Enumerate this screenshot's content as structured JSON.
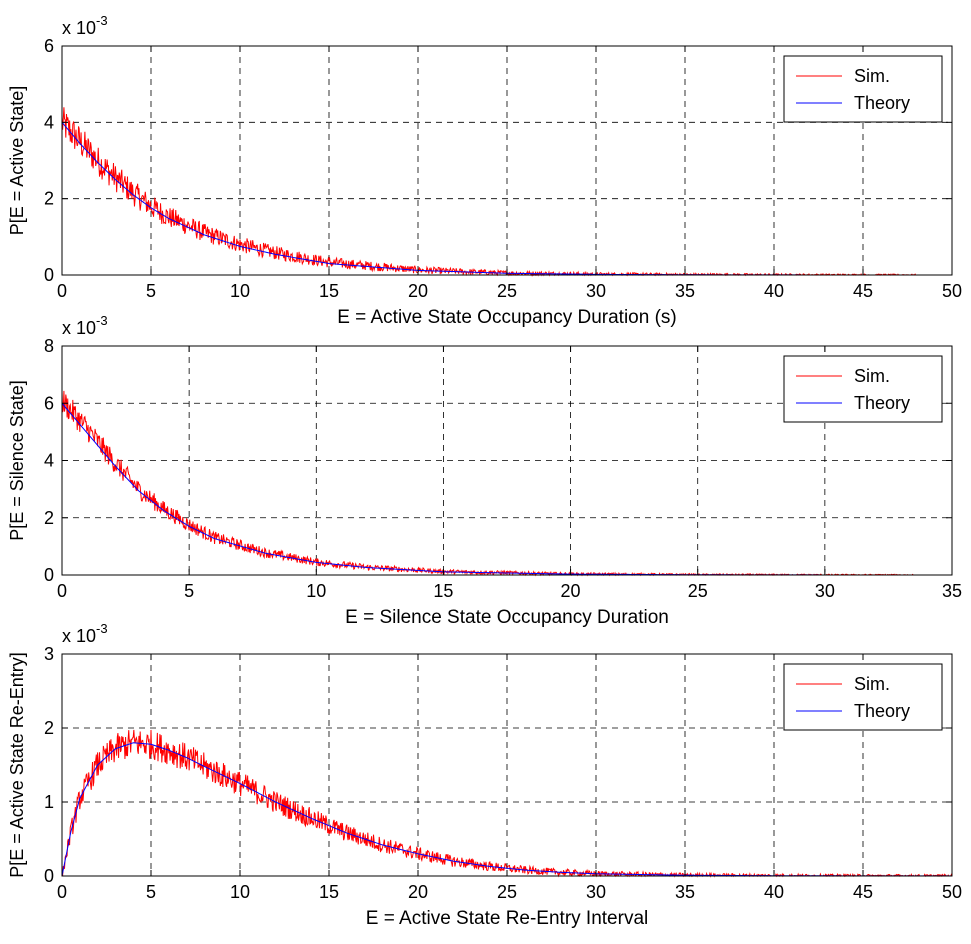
{
  "chart_data": [
    {
      "type": "line",
      "exponent_label": "x 10",
      "exponent_power": "-3",
      "xlabel": "E = Active State Occupancy Duration (s)",
      "ylabel": "P[E = Active State]",
      "xlim": [
        0,
        50
      ],
      "ylim": [
        0,
        6
      ],
      "xticks": [
        "0",
        "5",
        "10",
        "15",
        "20",
        "25",
        "30",
        "35",
        "40",
        "45",
        "50"
      ],
      "yticks": [
        "0",
        "2",
        "4",
        "6"
      ],
      "grid": true,
      "legend_position": "top-right",
      "series": [
        {
          "name": "Sim.",
          "color": "#ff0000",
          "kind": "noisy",
          "noise": 0.22,
          "x": [
            0,
            1,
            2,
            3,
            4,
            5,
            6,
            8,
            10,
            12,
            15,
            20,
            25,
            30,
            35,
            40,
            45,
            48
          ],
          "y": [
            4.0,
            3.5,
            3.0,
            2.55,
            2.15,
            1.8,
            1.52,
            1.1,
            0.8,
            0.58,
            0.33,
            0.13,
            0.05,
            0.02,
            0.01,
            0.005,
            0.002,
            0.001
          ]
        },
        {
          "name": "Theory",
          "color": "#0000ff",
          "kind": "smooth",
          "x": [
            0,
            1,
            2,
            3,
            4,
            5,
            6,
            8,
            10,
            12,
            15,
            20,
            25,
            30,
            35,
            40,
            45,
            48
          ],
          "y": [
            4.0,
            3.45,
            2.95,
            2.5,
            2.1,
            1.76,
            1.48,
            1.05,
            0.75,
            0.54,
            0.3,
            0.12,
            0.045,
            0.017,
            0.006,
            0.002,
            0.001,
            0.0005
          ]
        }
      ]
    },
    {
      "type": "line",
      "exponent_label": "x 10",
      "exponent_power": "-3",
      "xlabel": "E = Silence State Occupancy Duration",
      "ylabel": "P[E = Silence State]",
      "xlim": [
        0,
        35
      ],
      "ylim": [
        0,
        8
      ],
      "xticks": [
        "0",
        "5",
        "10",
        "15",
        "20",
        "25",
        "30",
        "35"
      ],
      "yticks": [
        "0",
        "2",
        "4",
        "6",
        "8"
      ],
      "grid": true,
      "legend_position": "top-right",
      "series": [
        {
          "name": "Sim.",
          "color": "#ff0000",
          "kind": "noisy",
          "noise": 0.18,
          "x": [
            0,
            1,
            2,
            3,
            4,
            5,
            6,
            8,
            10,
            12,
            15,
            20,
            25,
            30,
            33.5
          ],
          "y": [
            6.1,
            5.1,
            4.0,
            3.0,
            2.3,
            1.75,
            1.3,
            0.78,
            0.45,
            0.27,
            0.12,
            0.035,
            0.01,
            0.004,
            0.002
          ]
        },
        {
          "name": "Theory",
          "color": "#0000ff",
          "kind": "smooth",
          "x": [
            0,
            1,
            2,
            3,
            4,
            5,
            6,
            8,
            10,
            12,
            15,
            20,
            25,
            30,
            33.5
          ],
          "y": [
            6.0,
            4.95,
            3.9,
            2.95,
            2.25,
            1.7,
            1.27,
            0.76,
            0.44,
            0.26,
            0.11,
            0.03,
            0.008,
            0.002,
            0.001
          ]
        }
      ]
    },
    {
      "type": "line",
      "exponent_label": "x 10",
      "exponent_power": "-3",
      "xlabel": "E = Active State Re-Entry Interval",
      "ylabel": "P[E = Active State Re-Entry]",
      "xlim": [
        0,
        50
      ],
      "ylim": [
        0,
        3
      ],
      "xticks": [
        "0",
        "5",
        "10",
        "15",
        "20",
        "25",
        "30",
        "35",
        "40",
        "45",
        "50"
      ],
      "yticks": [
        "0",
        "1",
        "2",
        "3"
      ],
      "grid": true,
      "legend_position": "top-right",
      "series": [
        {
          "name": "Sim.",
          "color": "#ff0000",
          "kind": "noisy",
          "noise": 0.14,
          "x": [
            0,
            0.5,
            1,
            2,
            3,
            4,
            5,
            6,
            7,
            8,
            10,
            12,
            14,
            16,
            18,
            20,
            22,
            24,
            26,
            28,
            30,
            35,
            40,
            45,
            50
          ],
          "y": [
            0,
            0.6,
            1.05,
            1.5,
            1.72,
            1.8,
            1.78,
            1.7,
            1.6,
            1.48,
            1.25,
            1.0,
            0.78,
            0.58,
            0.42,
            0.3,
            0.2,
            0.13,
            0.08,
            0.05,
            0.03,
            0.01,
            0.004,
            0.002,
            0.001
          ]
        },
        {
          "name": "Theory",
          "color": "#0000ff",
          "kind": "smooth",
          "x": [
            0,
            0.5,
            1,
            2,
            3,
            4,
            5,
            6,
            7,
            8,
            10,
            12,
            14,
            16,
            18,
            20,
            22,
            24,
            26,
            28,
            30,
            35,
            40,
            45,
            50
          ],
          "y": [
            0,
            0.6,
            1.05,
            1.5,
            1.72,
            1.8,
            1.78,
            1.7,
            1.6,
            1.48,
            1.25,
            1.0,
            0.78,
            0.58,
            0.42,
            0.3,
            0.2,
            0.13,
            0.08,
            0.05,
            0.03,
            0.01,
            0.004,
            0.002,
            0.001
          ]
        }
      ]
    }
  ]
}
